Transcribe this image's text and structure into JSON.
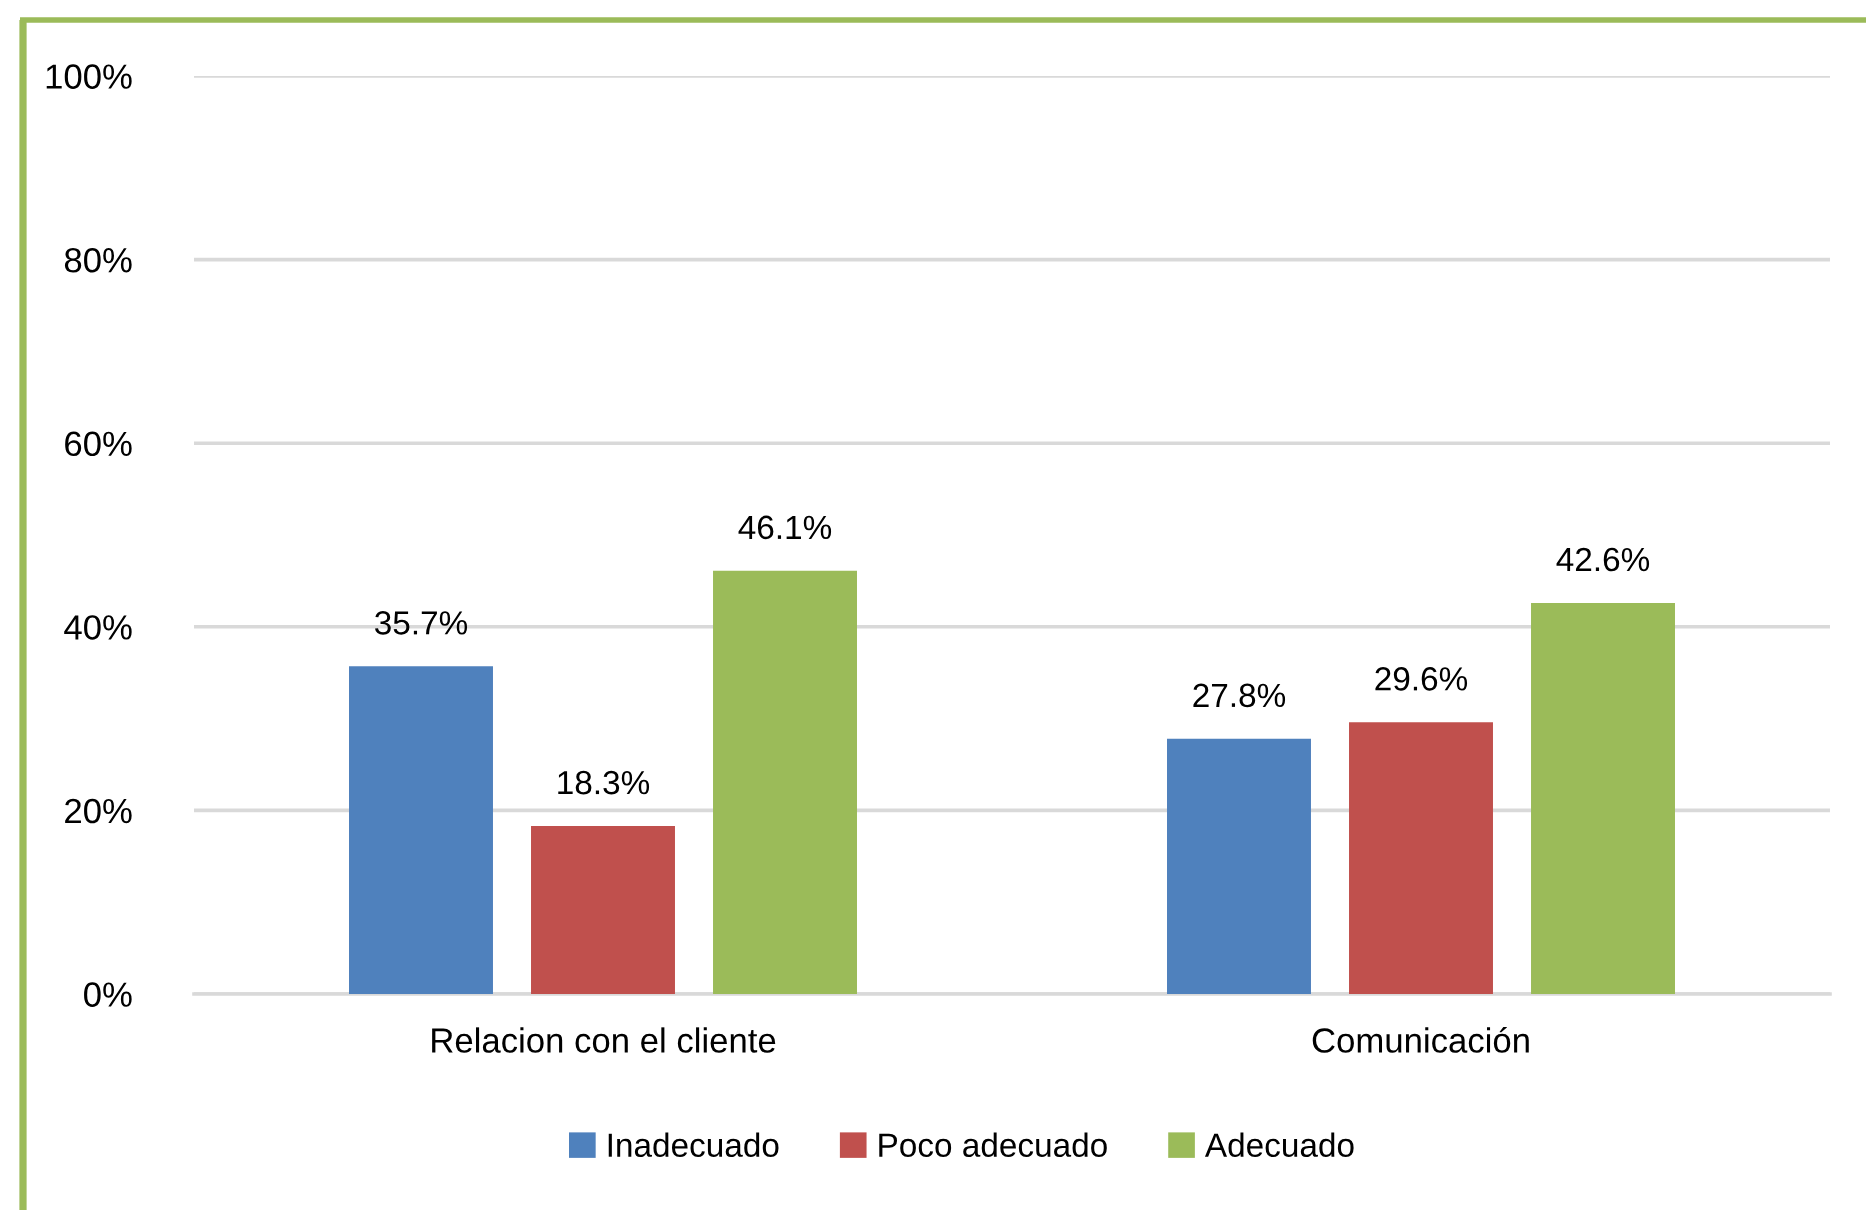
{
  "chart_data": {
    "type": "bar",
    "categories": [
      "Relacion con el cliente",
      "Comunicación"
    ],
    "series": [
      {
        "name": "Inadecuado",
        "color": "#4f81bd",
        "values": [
          35.7,
          27.8
        ],
        "value_labels": [
          "35.7%",
          "27.8%"
        ]
      },
      {
        "name": "Poco adecuado",
        "color": "#c0504d",
        "values": [
          18.3,
          29.6
        ],
        "value_labels": [
          "18.3%",
          "29.6%"
        ]
      },
      {
        "name": "Adecuado",
        "color": "#9bbb59",
        "values": [
          46.1,
          42.6
        ],
        "value_labels": [
          "46.1%",
          "42.6%"
        ]
      }
    ],
    "ylim": [
      0,
      100
    ],
    "yticks": [
      {
        "value": 0,
        "label": "0%"
      },
      {
        "value": 20,
        "label": "20%"
      },
      {
        "value": 40,
        "label": "40%"
      },
      {
        "value": 60,
        "label": "60%"
      },
      {
        "value": 80,
        "label": "80%"
      },
      {
        "value": 100,
        "label": "100%"
      }
    ],
    "grid": "y",
    "legend": "bottom"
  }
}
